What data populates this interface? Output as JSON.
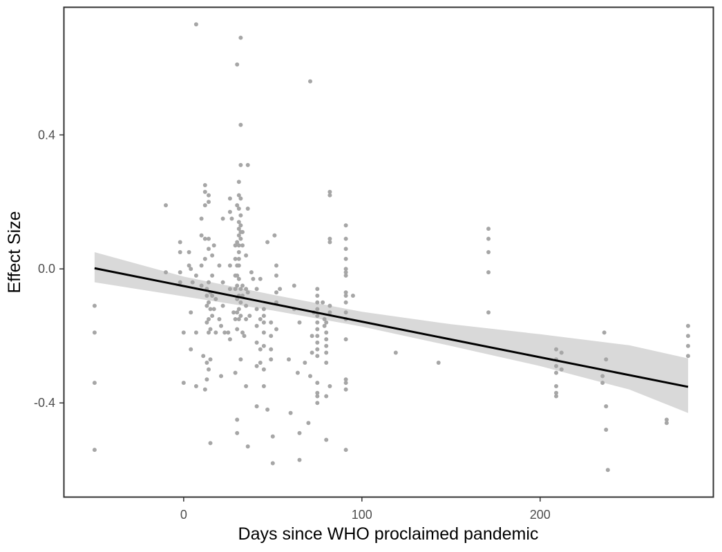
{
  "chart_data": {
    "type": "scatter",
    "xlabel": "Days since WHO proclaimed pandemic",
    "ylabel": "Effect Size",
    "xlim": [
      -67,
      297
    ],
    "ylim": [
      -0.68,
      0.78
    ],
    "x_ticks": [
      0,
      100,
      200
    ],
    "x_tick_labels": [
      "0",
      "100",
      "200"
    ],
    "y_ticks": [
      -0.4,
      0.0,
      0.4
    ],
    "y_tick_labels": [
      "-0.4",
      "0.0",
      "0.4"
    ],
    "grid": false,
    "legend": "none",
    "point_color": "#a6a6a6",
    "line_color": "#000000",
    "band_color": "#d9d9d9",
    "points": [
      [
        -50,
        -0.11
      ],
      [
        -50,
        -0.19
      ],
      [
        -50,
        -0.34
      ],
      [
        -50,
        -0.54
      ],
      [
        -10,
        0.19
      ],
      [
        -10,
        -0.01
      ],
      [
        -2,
        0.08
      ],
      [
        -2,
        0.05
      ],
      [
        -2,
        -0.01
      ],
      [
        -2,
        -0.04
      ],
      [
        0,
        -0.19
      ],
      [
        0,
        -0.34
      ],
      [
        3,
        0.05
      ],
      [
        3,
        0.01
      ],
      [
        4,
        0.0
      ],
      [
        4,
        -0.13
      ],
      [
        4,
        -0.24
      ],
      [
        5,
        -0.04
      ],
      [
        7,
        0.73
      ],
      [
        7,
        -0.02
      ],
      [
        7,
        -0.19
      ],
      [
        7,
        -0.35
      ],
      [
        10,
        0.15
      ],
      [
        10,
        0.1
      ],
      [
        10,
        0.01
      ],
      [
        10,
        -0.05
      ],
      [
        11,
        -0.26
      ],
      [
        12,
        -0.36
      ],
      [
        12,
        0.25
      ],
      [
        12,
        0.23
      ],
      [
        12,
        0.19
      ],
      [
        12,
        0.09
      ],
      [
        12,
        0.03
      ],
      [
        13,
        -0.06
      ],
      [
        13,
        -0.08
      ],
      [
        13,
        -0.11
      ],
      [
        13,
        -0.16
      ],
      [
        13,
        -0.28
      ],
      [
        13,
        -0.33
      ],
      [
        14,
        0.22
      ],
      [
        14,
        0.2
      ],
      [
        14,
        0.09
      ],
      [
        14,
        0.06
      ],
      [
        14,
        -0.04
      ],
      [
        14,
        -0.1
      ],
      [
        14,
        -0.15
      ],
      [
        14,
        -0.19
      ],
      [
        14,
        -0.3
      ],
      [
        15,
        -0.52
      ],
      [
        15,
        -0.27
      ],
      [
        15,
        -0.18
      ],
      [
        15,
        -0.12
      ],
      [
        15,
        -0.07
      ],
      [
        16,
        0.04
      ],
      [
        16,
        -0.02
      ],
      [
        16,
        -0.08
      ],
      [
        16,
        -0.14
      ],
      [
        17,
        0.07
      ],
      [
        17,
        -0.12
      ],
      [
        18,
        -0.09
      ],
      [
        18,
        -0.19
      ],
      [
        20,
        0.01
      ],
      [
        20,
        -0.15
      ],
      [
        21,
        -0.17
      ],
      [
        21,
        -0.32
      ],
      [
        22,
        0.15
      ],
      [
        22,
        -0.04
      ],
      [
        22,
        -0.11
      ],
      [
        23,
        -0.19
      ],
      [
        25,
        -0.19
      ],
      [
        26,
        0.21
      ],
      [
        26,
        0.17
      ],
      [
        26,
        0.01
      ],
      [
        26,
        -0.06
      ],
      [
        26,
        -0.21
      ],
      [
        27,
        0.15
      ],
      [
        28,
        -0.13
      ],
      [
        29,
        0.07
      ],
      [
        29,
        0.03
      ],
      [
        29,
        -0.02
      ],
      [
        29,
        -0.06
      ],
      [
        29,
        -0.15
      ],
      [
        29,
        -0.31
      ],
      [
        30,
        0.61
      ],
      [
        30,
        -0.45
      ],
      [
        30,
        -0.49
      ],
      [
        30,
        0.19
      ],
      [
        30,
        0.08
      ],
      [
        30,
        0.01
      ],
      [
        30,
        -0.02
      ],
      [
        30,
        -0.05
      ],
      [
        30,
        -0.09
      ],
      [
        30,
        -0.13
      ],
      [
        30,
        -0.18
      ],
      [
        31,
        0.26
      ],
      [
        31,
        0.22
      ],
      [
        31,
        0.18
      ],
      [
        31,
        0.14
      ],
      [
        31,
        0.12
      ],
      [
        31,
        0.1
      ],
      [
        31,
        0.07
      ],
      [
        31,
        0.05
      ],
      [
        31,
        0.03
      ],
      [
        31,
        0.01
      ],
      [
        31,
        -0.03
      ],
      [
        31,
        -0.08
      ],
      [
        31,
        -0.12
      ],
      [
        31,
        -0.15
      ],
      [
        32,
        0.69
      ],
      [
        32,
        0.43
      ],
      [
        32,
        0.31
      ],
      [
        32,
        0.21
      ],
      [
        32,
        0.16
      ],
      [
        32,
        0.13
      ],
      [
        32,
        0.11
      ],
      [
        32,
        0.09
      ],
      [
        32,
        -0.06
      ],
      [
        32,
        -0.1
      ],
      [
        32,
        -0.14
      ],
      [
        32,
        -0.27
      ],
      [
        33,
        0.11
      ],
      [
        33,
        0.07
      ],
      [
        33,
        -0.05
      ],
      [
        33,
        -0.08
      ],
      [
        33,
        -0.19
      ],
      [
        34,
        -0.2
      ],
      [
        35,
        0.04
      ],
      [
        35,
        -0.06
      ],
      [
        35,
        -0.11
      ],
      [
        35,
        -0.15
      ],
      [
        35,
        -0.35
      ],
      [
        36,
        0.31
      ],
      [
        36,
        0.18
      ],
      [
        36,
        -0.53
      ],
      [
        36,
        -0.07
      ],
      [
        37,
        -0.14
      ],
      [
        38,
        -0.01
      ],
      [
        39,
        -0.03
      ],
      [
        41,
        -0.06
      ],
      [
        41,
        -0.12
      ],
      [
        41,
        -0.17
      ],
      [
        41,
        -0.22
      ],
      [
        41,
        -0.29
      ],
      [
        41,
        -0.41
      ],
      [
        43,
        -0.03
      ],
      [
        43,
        -0.15
      ],
      [
        43,
        -0.24
      ],
      [
        43,
        -0.28
      ],
      [
        45,
        -0.12
      ],
      [
        45,
        -0.14
      ],
      [
        45,
        -0.16
      ],
      [
        45,
        -0.19
      ],
      [
        45,
        -0.23
      ],
      [
        45,
        -0.3
      ],
      [
        45,
        -0.35
      ],
      [
        47,
        0.08
      ],
      [
        47,
        -0.42
      ],
      [
        49,
        -0.16
      ],
      [
        49,
        -0.2
      ],
      [
        49,
        -0.24
      ],
      [
        49,
        -0.27
      ],
      [
        50,
        -0.5
      ],
      [
        50,
        -0.58
      ],
      [
        51,
        0.1
      ],
      [
        52,
        0.01
      ],
      [
        52,
        -0.02
      ],
      [
        52,
        -0.07
      ],
      [
        52,
        -0.1
      ],
      [
        52,
        -0.18
      ],
      [
        54,
        -0.06
      ],
      [
        59,
        -0.27
      ],
      [
        60,
        -0.43
      ],
      [
        62,
        -0.05
      ],
      [
        62,
        -0.12
      ],
      [
        64,
        -0.31
      ],
      [
        65,
        -0.57
      ],
      [
        65,
        -0.49
      ],
      [
        65,
        -0.16
      ],
      [
        68,
        -0.28
      ],
      [
        70,
        -0.46
      ],
      [
        71,
        0.56
      ],
      [
        71,
        -0.32
      ],
      [
        72,
        -0.2
      ],
      [
        72,
        -0.25
      ],
      [
        73,
        -0.13
      ],
      [
        75,
        -0.34
      ],
      [
        75,
        -0.06
      ],
      [
        75,
        -0.08
      ],
      [
        75,
        -0.1
      ],
      [
        75,
        -0.12
      ],
      [
        75,
        -0.14
      ],
      [
        75,
        -0.16
      ],
      [
        75,
        -0.18
      ],
      [
        75,
        -0.2
      ],
      [
        75,
        -0.22
      ],
      [
        75,
        -0.24
      ],
      [
        75,
        -0.26
      ],
      [
        75,
        -0.37
      ],
      [
        75,
        -0.38
      ],
      [
        75,
        -0.4
      ],
      [
        78,
        -0.1
      ],
      [
        79,
        -0.15
      ],
      [
        79,
        -0.17
      ],
      [
        80,
        -0.51
      ],
      [
        80,
        -0.38
      ],
      [
        80,
        -0.23
      ],
      [
        80,
        -0.16
      ],
      [
        80,
        -0.19
      ],
      [
        80,
        -0.21
      ],
      [
        80,
        -0.25
      ],
      [
        80,
        -0.28
      ],
      [
        82,
        0.23
      ],
      [
        82,
        0.22
      ],
      [
        82,
        0.09
      ],
      [
        82,
        0.08
      ],
      [
        82,
        -0.11
      ],
      [
        82,
        -0.13
      ],
      [
        82,
        -0.35
      ],
      [
        91,
        0.13
      ],
      [
        91,
        0.09
      ],
      [
        91,
        0.06
      ],
      [
        91,
        0.03
      ],
      [
        91,
        0.0
      ],
      [
        91,
        -0.01
      ],
      [
        91,
        -0.02
      ],
      [
        91,
        -0.07
      ],
      [
        91,
        -0.08
      ],
      [
        91,
        -0.1
      ],
      [
        91,
        -0.13
      ],
      [
        91,
        -0.15
      ],
      [
        91,
        -0.21
      ],
      [
        91,
        -0.33
      ],
      [
        91,
        -0.34
      ],
      [
        91,
        -0.36
      ],
      [
        91,
        -0.54
      ],
      [
        95,
        -0.08
      ],
      [
        119,
        -0.25
      ],
      [
        143,
        -0.28
      ],
      [
        171,
        0.12
      ],
      [
        171,
        0.09
      ],
      [
        171,
        0.05
      ],
      [
        171,
        -0.01
      ],
      [
        171,
        -0.13
      ],
      [
        209,
        -0.24
      ],
      [
        209,
        -0.27
      ],
      [
        209,
        -0.29
      ],
      [
        209,
        -0.31
      ],
      [
        209,
        -0.35
      ],
      [
        209,
        -0.37
      ],
      [
        209,
        -0.38
      ],
      [
        212,
        -0.25
      ],
      [
        212,
        -0.3
      ],
      [
        235,
        -0.32
      ],
      [
        235,
        -0.34
      ],
      [
        236,
        -0.19
      ],
      [
        237,
        -0.27
      ],
      [
        237,
        -0.41
      ],
      [
        237,
        -0.48
      ],
      [
        238,
        -0.6
      ],
      [
        271,
        -0.45
      ],
      [
        271,
        -0.46
      ],
      [
        283,
        -0.17
      ],
      [
        283,
        -0.2
      ],
      [
        283,
        -0.23
      ],
      [
        283,
        -0.26
      ]
    ],
    "fit_line": {
      "x": [
        -50,
        283
      ],
      "y": [
        0.002,
        -0.352
      ]
    },
    "confidence_band": {
      "x": [
        -50,
        0,
        50,
        100,
        150,
        200,
        250,
        283
      ],
      "upper": [
        0.05,
        -0.023,
        -0.077,
        -0.128,
        -0.165,
        -0.195,
        -0.228,
        -0.267
      ],
      "lower": [
        -0.04,
        -0.082,
        -0.124,
        -0.172,
        -0.23,
        -0.29,
        -0.36,
        -0.43
      ]
    }
  }
}
